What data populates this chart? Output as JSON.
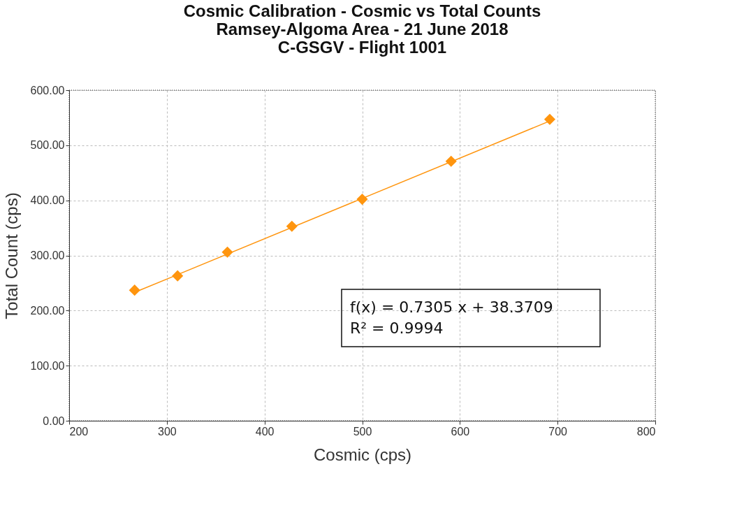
{
  "chart_data": {
    "type": "scatter",
    "title": "Cosmic Calibration - Cosmic vs Total Counts\nRamsey-Algoma Area - 21 June 2018\nC-GSGV - Flight 1001",
    "xlabel": "Cosmic (cps)",
    "ylabel": "Total Count (cps)",
    "series": [
      {
        "color": "#ff950e",
        "marker": "diamond",
        "x": [
          267,
          311,
          362,
          428,
          500,
          591,
          692
        ],
        "values": [
          237,
          263,
          306,
          353,
          402,
          471,
          547
        ]
      },
      {
        "type": "line",
        "color": "#ff950e",
        "line_style": "solid",
        "x": [
          267,
          692
        ],
        "values": [
          233,
          544
        ]
      }
    ],
    "xlim": [
      200,
      800
    ],
    "xticks": [
      200,
      300,
      400,
      500,
      600,
      700,
      800
    ],
    "ylim": [
      0,
      600
    ],
    "yticks": [
      {
        "value": 0,
        "label": "0.00"
      },
      {
        "value": 100,
        "label": "100.00"
      },
      {
        "value": 200,
        "label": "200.00"
      },
      {
        "value": 300,
        "label": "300.00"
      },
      {
        "value": 400,
        "label": "400.00"
      },
      {
        "value": 500,
        "label": "500.00"
      },
      {
        "value": 600,
        "label": "600.00"
      }
    ],
    "grid": true,
    "annotations": [
      "f(x) = 0.7305 x + 38.3709",
      "R² = 0.9994"
    ]
  }
}
